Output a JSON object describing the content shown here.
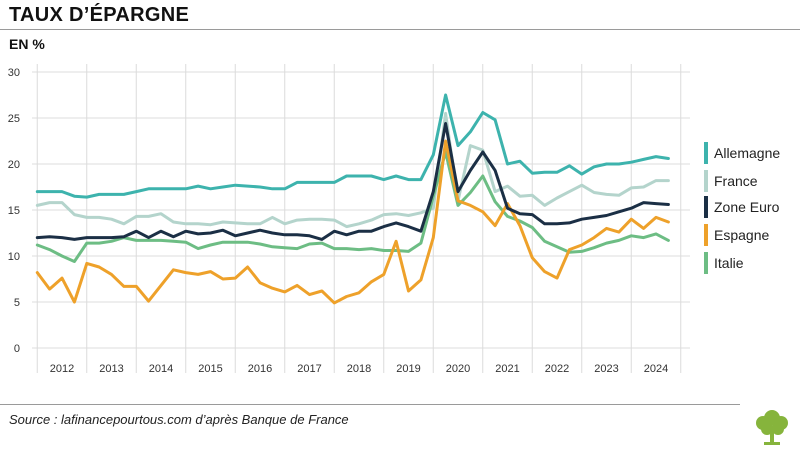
{
  "title": "TAUX D’ÉPARGNE",
  "subtitle": "EN %",
  "source": "Source : lafinancepourtous.com d’après Banque de France",
  "colors": {
    "Allemagne": "#3db3ad",
    "France": "#b4d4cc",
    "Zone Euro": "#1b2f45",
    "Espagne": "#eea12a",
    "Italie": "#6dbd84",
    "logo": "#86b43c"
  },
  "chart_data": {
    "type": "line",
    "title": "TAUX D’ÉPARGNE",
    "ylabel": "EN %",
    "xlabel": "",
    "ylim": [
      0,
      30
    ],
    "yticks": [
      0,
      5,
      10,
      15,
      20,
      25,
      30
    ],
    "xticks": [
      "2012",
      "2013",
      "2014",
      "2015",
      "2016",
      "2017",
      "2018",
      "2019",
      "2020",
      "2021",
      "2022",
      "2023",
      "2024"
    ],
    "x_start": 2011.5,
    "x_step": 0.25,
    "grid": true,
    "legend": "right",
    "series": [
      {
        "name": "Allemagne",
        "values": [
          17.0,
          17.0,
          17.0,
          16.5,
          16.4,
          16.7,
          16.7,
          16.7,
          17.0,
          17.3,
          17.3,
          17.3,
          17.3,
          17.6,
          17.3,
          17.5,
          17.7,
          17.6,
          17.5,
          17.3,
          17.3,
          18.0,
          18.0,
          18.0,
          18.0,
          18.7,
          18.7,
          18.7,
          18.3,
          18.7,
          18.3,
          18.3,
          21.0,
          27.5,
          22.0,
          23.5,
          25.6,
          24.8,
          20.0,
          20.3,
          19.0,
          19.1,
          19.1,
          19.8,
          18.9,
          19.7,
          20.0,
          20.0,
          20.2,
          20.5,
          20.8,
          20.6
        ]
      },
      {
        "name": "France",
        "values": [
          15.5,
          15.8,
          15.8,
          14.5,
          14.2,
          14.2,
          14.0,
          13.5,
          14.3,
          14.3,
          14.6,
          13.7,
          13.5,
          13.5,
          13.4,
          13.7,
          13.6,
          13.5,
          13.5,
          14.2,
          13.5,
          13.9,
          14.0,
          14.0,
          13.9,
          13.2,
          13.5,
          13.9,
          14.5,
          14.6,
          14.4,
          14.7,
          15.2,
          25.5,
          16.0,
          22.0,
          21.5,
          17.0,
          17.6,
          16.5,
          16.6,
          15.5,
          16.3,
          17.0,
          17.7,
          16.9,
          16.7,
          16.6,
          17.4,
          17.5,
          18.2,
          18.2
        ]
      },
      {
        "name": "Zone Euro",
        "values": [
          12.0,
          12.1,
          12.0,
          11.8,
          12.0,
          12.0,
          12.0,
          12.1,
          12.7,
          12.0,
          12.7,
          12.1,
          12.7,
          12.4,
          12.5,
          12.8,
          12.2,
          12.5,
          12.8,
          12.5,
          12.3,
          12.3,
          12.2,
          11.8,
          12.7,
          12.3,
          12.7,
          12.7,
          13.2,
          13.6,
          13.2,
          12.7,
          17.0,
          24.4,
          17.0,
          19.3,
          21.3,
          19.3,
          15.2,
          14.6,
          14.5,
          13.5,
          13.5,
          13.6,
          14.0,
          14.2,
          14.4,
          14.8,
          15.2,
          15.8,
          15.7,
          15.6
        ]
      },
      {
        "name": "Espagne",
        "values": [
          8.2,
          6.4,
          7.6,
          5.0,
          9.2,
          8.8,
          8.0,
          6.7,
          6.7,
          5.1,
          6.8,
          8.5,
          8.2,
          8.0,
          8.3,
          7.5,
          7.6,
          8.8,
          7.1,
          6.5,
          6.1,
          6.8,
          5.8,
          6.2,
          4.9,
          5.6,
          6.0,
          7.2,
          8.0,
          11.6,
          6.2,
          7.4,
          12.0,
          22.5,
          16.0,
          15.5,
          14.8,
          13.3,
          15.7,
          13.3,
          9.8,
          8.3,
          7.6,
          10.7,
          11.2,
          12.0,
          13.0,
          12.6,
          14.0,
          13.0,
          14.2,
          13.7
        ]
      },
      {
        "name": "Italie",
        "values": [
          11.2,
          10.7,
          10.0,
          9.4,
          11.4,
          11.4,
          11.6,
          12.0,
          11.7,
          11.7,
          11.7,
          11.6,
          11.5,
          10.8,
          11.2,
          11.5,
          11.5,
          11.5,
          11.3,
          11.0,
          10.9,
          10.8,
          11.3,
          11.4,
          10.8,
          10.8,
          10.7,
          10.8,
          10.6,
          10.6,
          10.5,
          11.4,
          16.5,
          21.3,
          15.5,
          16.9,
          18.7,
          15.9,
          14.3,
          13.8,
          13.1,
          11.6,
          11.0,
          10.4,
          10.5,
          10.9,
          11.4,
          11.7,
          12.2,
          12.0,
          12.4,
          11.7
        ]
      }
    ]
  }
}
